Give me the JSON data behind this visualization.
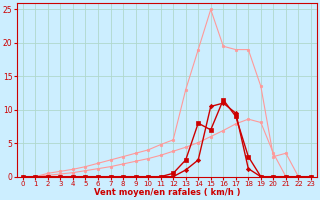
{
  "xlabel": "Vent moyen/en rafales ( km/h )",
  "bg_color": "#cceeff",
  "grid_color": "#b0d8cc",
  "x": [
    0,
    1,
    2,
    3,
    4,
    5,
    6,
    7,
    8,
    9,
    10,
    11,
    12,
    13,
    14,
    15,
    16,
    17,
    18,
    19,
    20,
    21,
    22,
    23
  ],
  "line_pink_high": [
    0,
    0.0,
    0.5,
    0.8,
    1.1,
    1.5,
    2.0,
    2.5,
    3.0,
    3.5,
    4.0,
    4.8,
    5.5,
    13,
    19,
    25,
    19.5,
    19,
    19,
    13.5,
    3,
    3.5,
    0,
    0
  ],
  "line_pink_low": [
    0,
    0,
    0.2,
    0.4,
    0.6,
    0.9,
    1.2,
    1.5,
    1.9,
    2.3,
    2.7,
    3.2,
    3.8,
    4.4,
    5.1,
    6.0,
    6.9,
    7.9,
    8.6,
    8.1,
    3.5,
    0,
    0,
    0
  ],
  "line_red_high": [
    0,
    0,
    0,
    0,
    0,
    0,
    0,
    0,
    0,
    0,
    0,
    0,
    0,
    1.0,
    2.5,
    10.5,
    11,
    9.5,
    1.2,
    0,
    0,
    0,
    0,
    0
  ],
  "line_red_low": [
    0,
    0,
    0,
    0,
    0,
    0,
    0,
    0,
    0,
    0,
    0,
    0,
    0.5,
    2.5,
    8,
    7,
    11.5,
    9,
    3,
    0,
    0,
    0,
    0,
    0
  ],
  "color_pink": "#ff9999",
  "color_dark_red": "#cc0000",
  "color_red": "#dd2222",
  "xlim": [
    -0.5,
    23.5
  ],
  "ylim": [
    0,
    26
  ],
  "yticks": [
    0,
    5,
    10,
    15,
    20,
    25
  ],
  "xticks": [
    0,
    1,
    2,
    3,
    4,
    5,
    6,
    7,
    8,
    9,
    10,
    11,
    12,
    13,
    14,
    15,
    16,
    17,
    18,
    19,
    20,
    21,
    22,
    23
  ],
  "tick_fontsize": 5.0,
  "xlabel_fontsize": 6.0
}
